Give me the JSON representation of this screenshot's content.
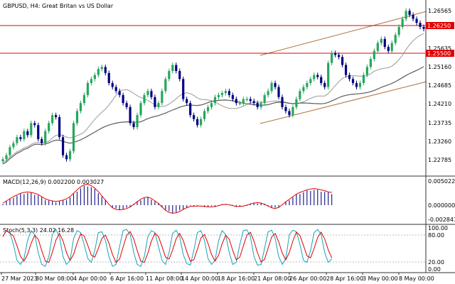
{
  "window": {
    "symbol": "GBPUSD",
    "timeframe": "H4",
    "title": "GBPUSD, H4:  Great Britan vs US Dollar"
  },
  "colors": {
    "background": "#ffffff",
    "bull_candle": "#26a65b",
    "bear_candle": "#000080",
    "ma_slow": "#5b5b5b",
    "ma_mid": "#9a9a9a",
    "channel": "#b0703a",
    "hline": "#e00000",
    "macd_hist": "#1f1f8f",
    "macd_signal": "#e00000",
    "stoch_main": "#17a3b8",
    "stoch_signal": "#e00000",
    "separator": "#333333"
  },
  "price_axis": {
    "labels": [
      "1.26565",
      "1.25635",
      "1.25160",
      "1.24685",
      "1.24210",
      "1.23735",
      "1.23260",
      "1.22785"
    ]
  },
  "price_tags": [
    {
      "name": "level-1",
      "value": "1.26250"
    },
    {
      "name": "level-2",
      "value": "1.25500"
    }
  ],
  "time_axis": {
    "labels": [
      "27 Mar 2023",
      "30 Mar 08:00",
      "4 Apr 00:00",
      "6 Apr 16:00",
      "11 Apr 08:00",
      "14 Apr 00:00",
      "18 Apr 16:00",
      "21 Apr 08:00",
      "26 Apr 00:00",
      "28 Apr 16:00",
      "3 May 00:00",
      "8 May 00:00"
    ]
  },
  "macd": {
    "title": "MACD(12,26,9) 0.002200 0.003027",
    "axis_labels": [
      "0.005022",
      "0.000000",
      "-0.002841"
    ]
  },
  "stoch": {
    "title": "Stoch(5,3,3) 24.02 16.28",
    "axis_labels": [
      "100.00",
      "80.00",
      "20.00",
      "0.00"
    ]
  },
  "chart_data": {
    "type": "candlestick",
    "title": "GBPUSD, H4:  Great Britan vs US Dollar",
    "ylim": [
      1.2255,
      1.268
    ],
    "price_series": [
      1.229,
      1.23,
      1.232,
      1.233,
      1.2345,
      1.234,
      1.236,
      1.235,
      1.238,
      1.2375,
      1.234,
      1.233,
      1.236,
      1.238,
      1.24,
      1.2395,
      1.2345,
      1.23,
      1.229,
      1.231,
      1.238,
      1.241,
      1.243,
      1.245,
      1.248,
      1.249,
      1.25,
      1.2515,
      1.252,
      1.2505,
      1.248,
      1.247,
      1.246,
      1.245,
      1.243,
      1.242,
      1.238,
      1.237,
      1.24,
      1.243,
      1.245,
      1.246,
      1.2445,
      1.242,
      1.243,
      1.246,
      1.249,
      1.251,
      1.2525,
      1.251,
      1.249,
      1.244,
      1.243,
      1.24,
      1.239,
      1.2375,
      1.239,
      1.241,
      1.242,
      1.243,
      1.2445,
      1.245,
      1.2455,
      1.246,
      1.245,
      1.244,
      1.243,
      1.243,
      1.244,
      1.244,
      1.2435,
      1.243,
      1.242,
      1.243,
      1.245,
      1.246,
      1.248,
      1.247,
      1.2445,
      1.242,
      1.241,
      1.24,
      1.242,
      1.244,
      1.246,
      1.247,
      1.248,
      1.249,
      1.25,
      1.2495,
      1.248,
      1.247,
      1.253,
      1.2555,
      1.255,
      1.2545,
      1.2525,
      1.25,
      1.249,
      1.248,
      1.247,
      1.248,
      1.25,
      1.252,
      1.254,
      1.256,
      1.258,
      1.259,
      1.257,
      1.256,
      1.258,
      1.26,
      1.262,
      1.264,
      1.266,
      1.265,
      1.264,
      1.263,
      1.262,
      1.2615
    ],
    "horizontal_levels": [
      1.2625,
      1.255
    ],
    "macd_signal_series": [
      0.0005,
      0.001,
      0.0015,
      0.002,
      0.0024,
      0.0028,
      0.003,
      0.0031,
      0.003,
      0.0028,
      0.0025,
      0.002,
      0.0015,
      0.0012,
      0.001,
      0.0009,
      0.001,
      0.0012,
      0.0015,
      0.002,
      0.0028,
      0.0036,
      0.0043,
      0.0048,
      0.0049,
      0.0046,
      0.004,
      0.0032,
      0.0022,
      0.0012,
      0.0002,
      -0.0006,
      -0.001,
      -0.0011,
      -0.001,
      -0.0008,
      -0.0004,
      0.0002,
      0.0008,
      0.0014,
      0.0018,
      0.0019,
      0.0016,
      0.001,
      0.0004,
      -0.0004,
      -0.0012,
      -0.0017,
      -0.0019,
      -0.0018,
      -0.0015,
      -0.001,
      -0.0006,
      -0.0003,
      -0.0002,
      -0.0002,
      -0.0002,
      -0.0003,
      -0.0004,
      -0.0004,
      -0.0003,
      -0.0001,
      0.0001,
      0.0002,
      0.0001,
      -0.0001,
      -0.0003,
      -0.0003,
      -0.0002,
      0.0,
      0.0003,
      0.0005,
      0.0006,
      0.0005,
      0.0002,
      -0.0002,
      -0.0006,
      -0.0008,
      -0.0005,
      0.0001,
      0.0008,
      0.0014,
      0.002,
      0.0026,
      0.003,
      0.0033,
      0.0036,
      0.0038,
      0.0039,
      0.0038,
      0.0036,
      0.0034,
      0.0031,
      0.003
    ],
    "stoch_main_series": [
      80,
      95,
      90,
      60,
      20,
      10,
      25,
      70,
      95,
      85,
      40,
      10,
      5,
      30,
      85,
      98,
      80,
      30,
      10,
      20,
      75,
      95,
      90,
      60,
      25,
      15,
      45,
      90,
      92,
      70,
      30,
      5,
      10,
      55,
      95,
      98,
      85,
      40,
      10,
      5,
      30,
      80,
      95,
      90,
      55,
      20,
      10,
      40,
      88,
      96,
      80,
      35,
      12,
      8,
      45,
      90,
      95,
      70,
      25,
      10,
      20,
      70,
      95,
      85,
      40,
      10,
      15,
      60,
      95,
      97,
      80,
      30,
      8,
      10,
      50,
      92,
      96,
      75,
      30,
      10,
      25,
      85,
      96,
      92,
      60,
      20,
      15,
      45,
      90,
      98,
      85,
      40,
      15,
      24
    ]
  }
}
